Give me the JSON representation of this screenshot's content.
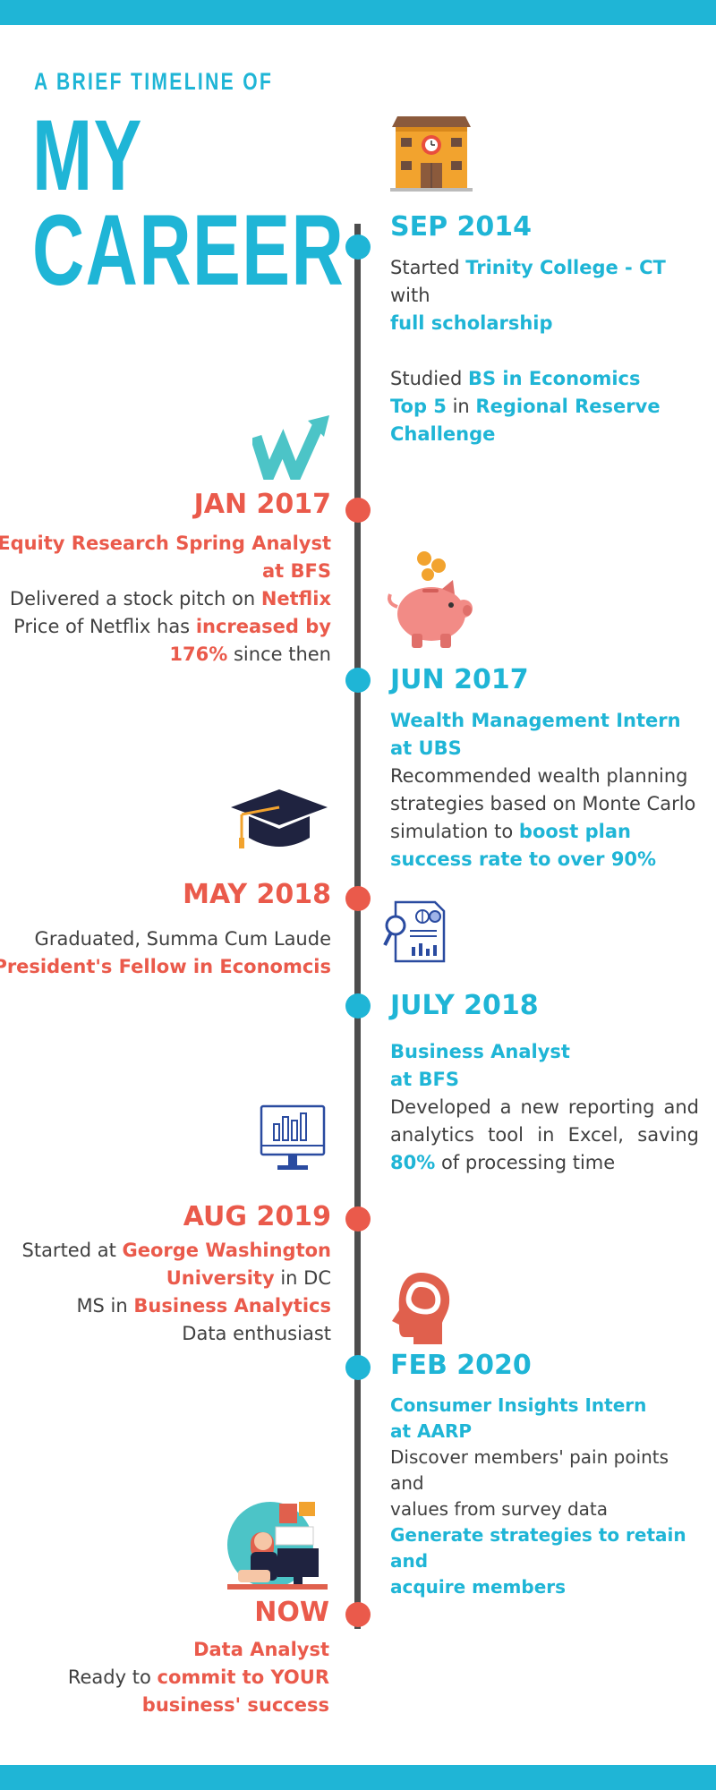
{
  "header": {
    "subtitle": "A BRIEF TIMELINE OF",
    "title_line1": "MY",
    "title_line2": "CAREER"
  },
  "colors": {
    "accent_blue": "#1fb5d6",
    "accent_red": "#ea5a4b",
    "line": "#4d4d4d",
    "text": "#404040"
  },
  "events": {
    "sep2014": {
      "date": "SEP 2014",
      "l1a": "Started ",
      "l1b": "Trinity College - CT",
      "l1c": " with",
      "l2": "full scholarship",
      "l3a": "Studied ",
      "l3b": "BS in Economics",
      "l4a": "Top 5",
      "l4b": " in ",
      "l4c": "Regional Reserve",
      "l5": "Challenge"
    },
    "jan2017": {
      "date": "JAN 2017",
      "role1": "Equity Research Spring Analyst",
      "role2": "at BFS",
      "l1a": "Delivered a stock pitch on ",
      "l1b": "Netflix",
      "l2a": "Price of Netflix has ",
      "l2b": "increased by",
      "l3a": "176%",
      "l3b": " since then"
    },
    "jun2017": {
      "date": "JUN 2017",
      "role1": "Wealth Management Intern",
      "role2": "at UBS",
      "l1": "Recommended wealth planning",
      "l2": "strategies based on Monte Carlo",
      "l3a": "simulation to ",
      "l3b": "boost plan",
      "l4": "success rate to over 90%"
    },
    "may2018": {
      "date": "MAY 2018",
      "l1": "Graduated, Summa Cum Laude",
      "l2": "President's Fellow in Economcis"
    },
    "jul2018": {
      "date": "JULY 2018",
      "role1": "Business Analyst",
      "role2": "at BFS",
      "l1": "Developed a new reporting and",
      "l2": "analytics tool in Excel, saving",
      "l3a": "80%",
      "l3b": " of processing time"
    },
    "aug2019": {
      "date": "AUG 2019",
      "l1a": "Started at ",
      "l1b": "George Washington",
      "l2a": "University",
      "l2b": " in DC",
      "l3a": "MS in ",
      "l3b": "Business Analytics",
      "l4": "Data enthusiast"
    },
    "feb2020": {
      "date": "FEB 2020",
      "role1": "Consumer Insights Intern",
      "role2": "at AARP",
      "l1": "Discover members' pain points and",
      "l2": "values from survey data",
      "l3": "Generate strategies to retain and",
      "l4": "acquire members"
    },
    "now": {
      "date": "NOW",
      "role": "Data Analyst",
      "l1a": "Ready to ",
      "l1b": "commit to YOUR",
      "l2": "business' success"
    }
  },
  "icons": [
    "school-building-icon",
    "growth-w-arrow-icon",
    "piggy-bank-icon",
    "graduation-cap-icon",
    "report-magnifier-icon",
    "monitor-chart-icon",
    "head-silhouette-icon",
    "analyst-at-desk-illustration"
  ]
}
